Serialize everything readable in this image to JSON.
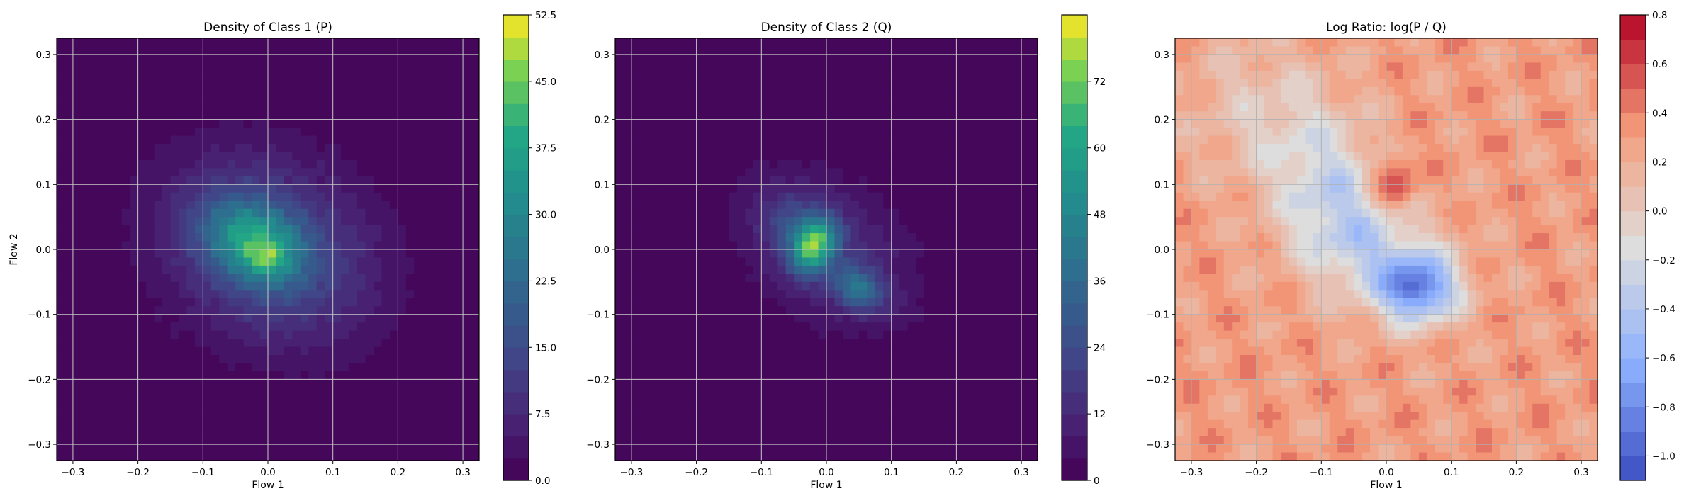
{
  "chart_data": [
    {
      "type": "heatmap",
      "title": "Density of Class 1 (P)",
      "xlabel": "Flow 1",
      "ylabel": "Flow 2",
      "xlim": [
        -0.325,
        0.325
      ],
      "ylim": [
        -0.325,
        0.325
      ],
      "xticks": [
        "−0.3",
        "−0.2",
        "−0.1",
        "0.0",
        "0.1",
        "0.2",
        "0.3"
      ],
      "yticks": [
        "−0.3",
        "−0.2",
        "−0.1",
        "0.0",
        "0.1",
        "0.2",
        "0.3"
      ],
      "tick_values": [
        -0.3,
        -0.2,
        -0.1,
        0.0,
        0.1,
        0.2,
        0.3
      ],
      "grid": true,
      "colormap": "viridis",
      "colorbar": {
        "min": 0,
        "max": 52.5,
        "ticks": [
          0,
          7.5,
          15,
          22.5,
          30,
          37.5,
          45,
          52.5
        ],
        "tick_labels": [
          "0.0",
          "7.5",
          "15.0",
          "22.5",
          "30.0",
          "37.5",
          "45.0",
          "52.5"
        ],
        "levels": 21
      },
      "blobs": [
        {
          "cx": 0.0,
          "cy": 0.0,
          "sx": 0.12,
          "sy": 0.095,
          "rot": -30,
          "amp": 16
        },
        {
          "cx": -0.02,
          "cy": 0.01,
          "sx": 0.055,
          "sy": 0.04,
          "rot": -30,
          "amp": 26
        },
        {
          "cx": 0.0,
          "cy": -0.015,
          "sx": 0.02,
          "sy": 0.015,
          "rot": 0,
          "amp": 10
        }
      ]
    },
    {
      "type": "heatmap",
      "title": "Density of Class 2 (Q)",
      "xlabel": "Flow 1",
      "ylabel": "",
      "xlim": [
        -0.325,
        0.325
      ],
      "ylim": [
        -0.325,
        0.325
      ],
      "xticks": [
        "−0.3",
        "−0.2",
        "−0.1",
        "0.0",
        "0.1",
        "0.2",
        "0.3"
      ],
      "yticks": [
        "−0.3",
        "−0.2",
        "−0.1",
        "0.0",
        "0.1",
        "0.2",
        "0.3"
      ],
      "tick_values": [
        -0.3,
        -0.2,
        -0.1,
        0.0,
        0.1,
        0.2,
        0.3
      ],
      "grid": true,
      "colormap": "viridis",
      "colorbar": {
        "min": 0,
        "max": 84,
        "ticks": [
          0,
          12,
          24,
          36,
          48,
          60,
          72
        ],
        "tick_labels": [
          "0",
          "12",
          "24",
          "36",
          "48",
          "60",
          "72"
        ],
        "levels": 21
      },
      "blobs": [
        {
          "cx": 0.0,
          "cy": 0.0,
          "sx": 0.105,
          "sy": 0.07,
          "rot": -38,
          "amp": 15
        },
        {
          "cx": -0.02,
          "cy": 0.005,
          "sx": 0.022,
          "sy": 0.03,
          "rot": -30,
          "amp": 55
        },
        {
          "cx": 0.05,
          "cy": -0.06,
          "sx": 0.03,
          "sy": 0.022,
          "rot": -30,
          "amp": 30
        },
        {
          "cx": -0.045,
          "cy": 0.035,
          "sx": 0.04,
          "sy": 0.03,
          "rot": -30,
          "amp": 15
        }
      ]
    },
    {
      "type": "heatmap",
      "title": "Log Ratio: log(P / Q)",
      "xlabel": "Flow 1",
      "ylabel": "",
      "xlim": [
        -0.325,
        0.325
      ],
      "ylim": [
        -0.325,
        0.325
      ],
      "xticks": [
        "−0.3",
        "−0.2",
        "−0.1",
        "0.0",
        "0.1",
        "0.2",
        "0.3"
      ],
      "yticks": [
        "−0.3",
        "−0.2",
        "−0.1",
        "0.0",
        "0.1",
        "0.2",
        "0.3"
      ],
      "tick_values": [
        -0.3,
        -0.2,
        -0.1,
        0.0,
        0.1,
        0.2,
        0.3
      ],
      "grid": true,
      "colormap": "coolwarm",
      "colorbar": {
        "min": -1.1,
        "max": 0.8,
        "ticks": [
          -1.0,
          -0.8,
          -0.6,
          -0.4,
          -0.2,
          0.0,
          0.2,
          0.4,
          0.6,
          0.8
        ],
        "tick_labels": [
          "−1.0",
          "−0.8",
          "−0.6",
          "−0.4",
          "−0.2",
          "0.0",
          "0.2",
          "0.4",
          "0.6",
          "0.8"
        ],
        "levels": 19
      },
      "base_value": 0.3,
      "blobs": [
        {
          "cx": 0.05,
          "cy": -0.06,
          "sx": 0.04,
          "sy": 0.035,
          "rot": 0,
          "amp": -1.0
        },
        {
          "cx": -0.03,
          "cy": 0.0,
          "sx": 0.09,
          "sy": 0.06,
          "rot": -30,
          "amp": -0.55
        },
        {
          "cx": -0.09,
          "cy": 0.12,
          "sx": 0.06,
          "sy": 0.08,
          "rot": 20,
          "amp": -0.4
        },
        {
          "cx": 0.01,
          "cy": 0.1,
          "sx": 0.025,
          "sy": 0.03,
          "rot": 0,
          "amp": 0.45
        },
        {
          "cx": -0.2,
          "cy": 0.22,
          "sx": 0.08,
          "sy": 0.08,
          "rot": 0,
          "amp": -0.25
        }
      ]
    }
  ]
}
